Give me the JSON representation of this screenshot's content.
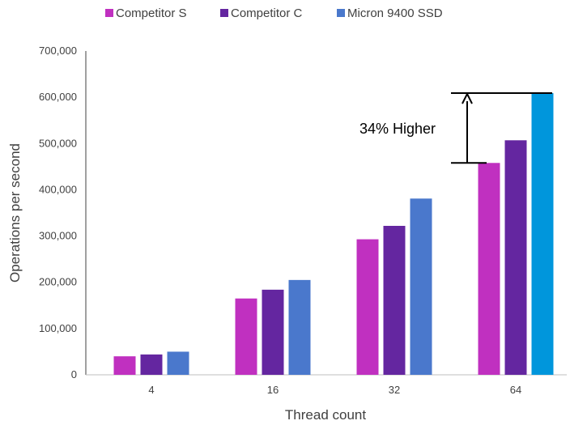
{
  "chart_data": {
    "type": "bar",
    "title": "",
    "xlabel": "Thread count",
    "ylabel": "Operations per second",
    "categories": [
      "4",
      "16",
      "32",
      "64"
    ],
    "ylim": [
      0,
      700000
    ],
    "yticks": [
      0,
      100000,
      200000,
      300000,
      400000,
      500000,
      600000,
      700000
    ],
    "ytick_labels": [
      "0",
      "100,000",
      "200,000",
      "300,000",
      "400,000",
      "500,000",
      "600,000",
      "700,000"
    ],
    "grid": false,
    "legend_position": "top",
    "series": [
      {
        "name": "Competitor S",
        "color": "#C030C0",
        "values": [
          40000,
          165000,
          293000,
          458000
        ]
      },
      {
        "name": "Competitor C",
        "color": "#6426A0",
        "values": [
          44000,
          184000,
          322000,
          507000
        ]
      },
      {
        "name": "Micron 9400 SSD",
        "color": "#4A78CC",
        "highlight_color": "#0096DC",
        "values": [
          50000,
          205000,
          381000,
          609000
        ]
      }
    ],
    "annotation": {
      "text": "34% Higher",
      "from_value": 458000,
      "to_value": 609000,
      "category": "64"
    }
  }
}
